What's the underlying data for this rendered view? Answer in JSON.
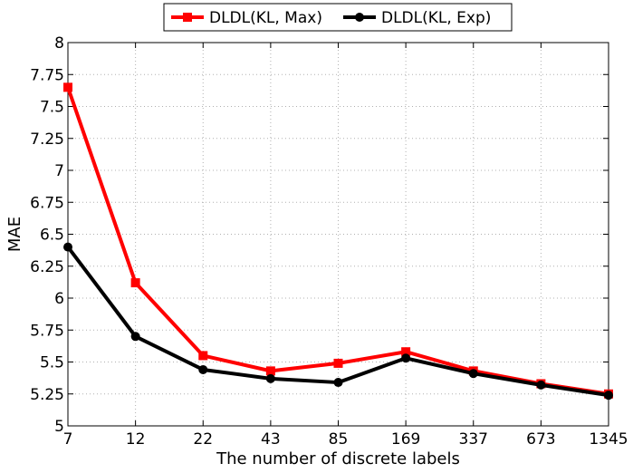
{
  "chart_data": {
    "type": "line",
    "title": "",
    "xlabel": "The number of discrete labels",
    "ylabel": "MAE",
    "categories": [
      "7",
      "12",
      "22",
      "43",
      "85",
      "169",
      "337",
      "673",
      "1345"
    ],
    "ylim": [
      5,
      8
    ],
    "yticks": [
      "5",
      "5.25",
      "5.5",
      "5.75",
      "6",
      "6.25",
      "6.5",
      "6.75",
      "7",
      "7.25",
      "7.5",
      "7.75",
      "8"
    ],
    "grid": true,
    "legend_position": "top-center",
    "series": [
      {
        "name": "DLDL(KL, Max)",
        "color": "#ff0000",
        "marker": "square",
        "values": [
          7.65,
          6.12,
          5.55,
          5.43,
          5.49,
          5.58,
          5.43,
          5.33,
          5.25
        ]
      },
      {
        "name": "DLDL(KL, Exp)",
        "color": "#000000",
        "marker": "circle",
        "values": [
          6.4,
          5.7,
          5.44,
          5.37,
          5.34,
          5.53,
          5.41,
          5.32,
          5.24
        ]
      }
    ]
  }
}
